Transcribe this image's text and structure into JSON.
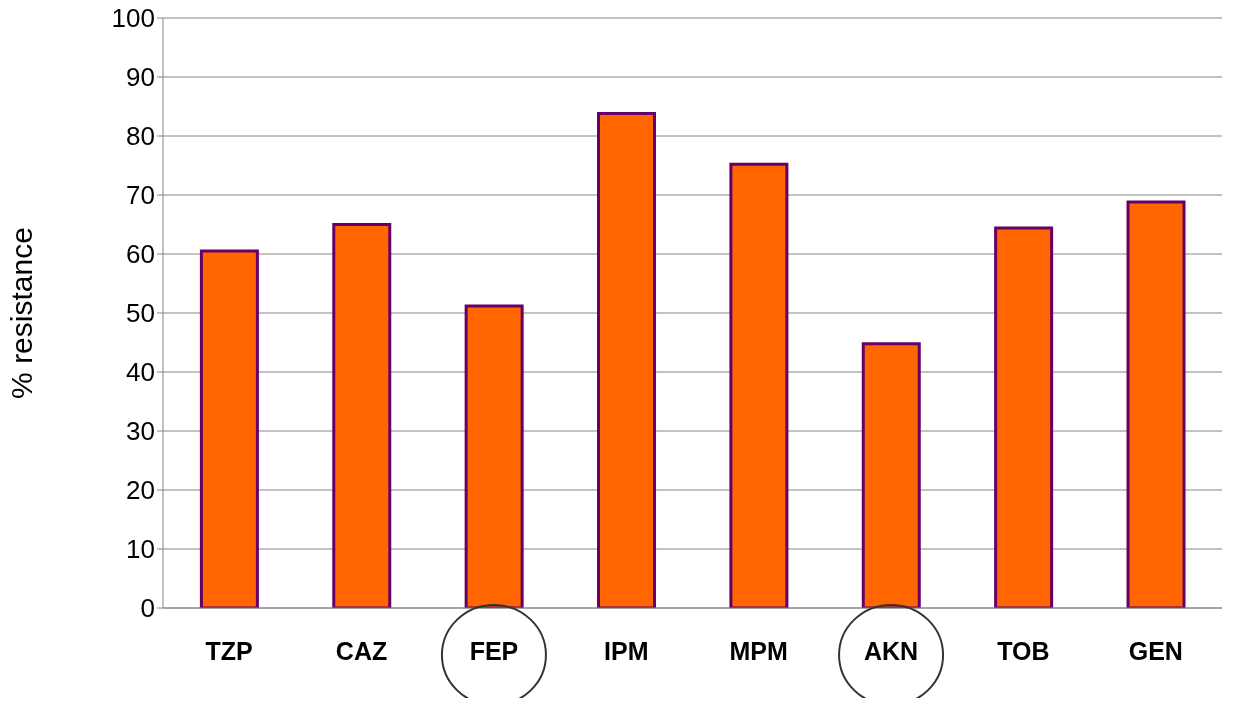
{
  "chart_data": {
    "type": "bar",
    "ylabel": "% resistance",
    "categories": [
      "TZP",
      "CAZ",
      "FEP",
      "IPM",
      "MPM",
      "AKN",
      "TOB",
      "GEN"
    ],
    "values": [
      60.5,
      65,
      51.2,
      83.8,
      75.2,
      44.8,
      64.4,
      68.8
    ],
    "color": "#ff6600",
    "ylim": [
      0,
      100
    ],
    "yticks": [
      0,
      10,
      20,
      30,
      40,
      50,
      60,
      70,
      80,
      90,
      100
    ],
    "grid": "y"
  }
}
